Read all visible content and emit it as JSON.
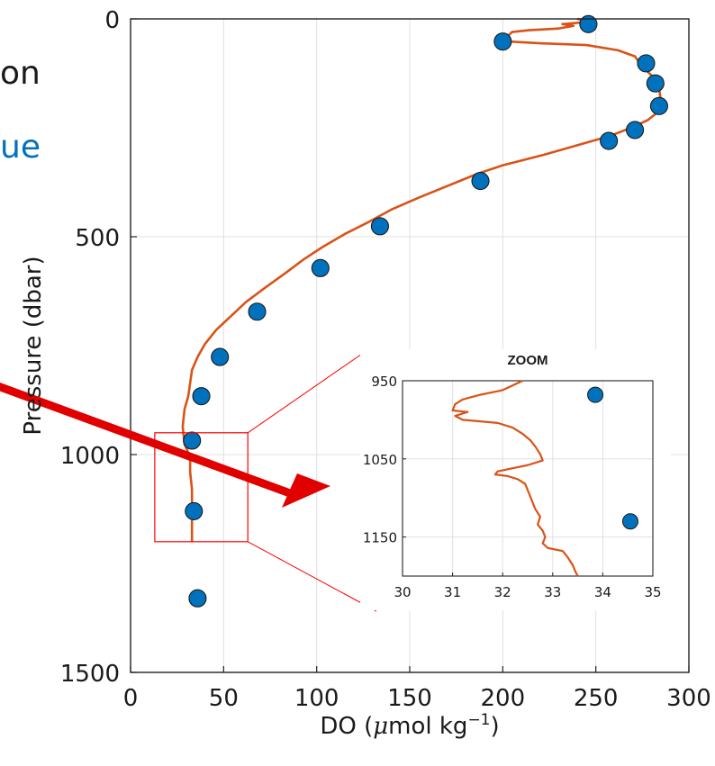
{
  "cropped_text": {
    "line1": "on",
    "line2": "ue",
    "line2_color": "#0072bd"
  },
  "colors": {
    "profile_line": "#d95319",
    "marker_fill": "#0072bd",
    "marker_edge": "#1a1a1a",
    "zoom_box": "#ff0000",
    "arrow": "#e00000",
    "grid": "#e0e0e0"
  },
  "chart_data": [
    {
      "type": "scatter",
      "title": "",
      "xlabel": "DO",
      "xlabel_unit_prefix": "(",
      "xlabel_unit_mu": "μ",
      "xlabel_unit_mid": "mol kg",
      "xlabel_unit_exp": "−1",
      "xlabel_unit_suffix": ")",
      "ylabel": "Pressure (dbar)",
      "xlim": [
        0,
        300
      ],
      "ylim": [
        0,
        1500
      ],
      "y_reversed": true,
      "grid": true,
      "xticks": [
        0,
        50,
        100,
        150,
        200,
        250,
        300
      ],
      "xtick_labels": [
        "0",
        "50",
        "100",
        "150",
        "200",
        "250",
        "300"
      ],
      "yticks": [
        0,
        500,
        1000,
        1500
      ],
      "ytick_labels": [
        "0",
        "500",
        "1000",
        "1500"
      ],
      "series": [
        {
          "kind": "bottle_samples",
          "points": [
            [
              246,
              12
            ],
            [
              200,
              52
            ],
            [
              277,
              102
            ],
            [
              282,
              148
            ],
            [
              284,
              200
            ],
            [
              271,
              255
            ],
            [
              257,
              280
            ],
            [
              188,
              372
            ],
            [
              134,
              476
            ],
            [
              102,
              572
            ],
            [
              68,
              672
            ],
            [
              48,
              776
            ],
            [
              38,
              866
            ],
            [
              33,
              968
            ],
            [
              34,
              1130
            ],
            [
              36,
              1330
            ]
          ]
        },
        {
          "kind": "sensor_profile",
          "points": [
            [
              240,
              0
            ],
            [
              248,
              6
            ],
            [
              232,
              12
            ],
            [
              238,
              16
            ],
            [
              230,
              22
            ],
            [
              214,
              26
            ],
            [
              205,
              30
            ],
            [
              203,
              38
            ],
            [
              199,
              44
            ],
            [
              204,
              52
            ],
            [
              220,
              56
            ],
            [
              245,
              60
            ],
            [
              262,
              72
            ],
            [
              271,
              86
            ],
            [
              275,
              110
            ],
            [
              280,
              130
            ],
            [
              284,
              160
            ],
            [
              285,
              190
            ],
            [
              283,
              215
            ],
            [
              278,
              232
            ],
            [
              270,
              248
            ],
            [
              258,
              268
            ],
            [
              240,
              290
            ],
            [
              222,
              312
            ],
            [
              200,
              336
            ],
            [
              186,
              356
            ],
            [
              170,
              384
            ],
            [
              155,
              410
            ],
            [
              140,
              438
            ],
            [
              128,
              466
            ],
            [
              115,
              494
            ],
            [
              103,
              524
            ],
            [
              93,
              552
            ],
            [
              83,
              584
            ],
            [
              72,
              618
            ],
            [
              62,
              650
            ],
            [
              54,
              682
            ],
            [
              46,
              714
            ],
            [
              40,
              746
            ],
            [
              36,
              776
            ],
            [
              33,
              806
            ],
            [
              32,
              836
            ],
            [
              31,
              866
            ],
            [
              29,
              896
            ],
            [
              28,
              936
            ],
            [
              29,
              976
            ],
            [
              32,
              1006
            ],
            [
              32,
              1040
            ],
            [
              33,
              1080
            ],
            [
              33,
              1120
            ],
            [
              33,
              1160
            ],
            [
              33,
              1200
            ]
          ]
        }
      ]
    },
    {
      "type": "scatter",
      "title": "ZOOM",
      "xlim": [
        30,
        35
      ],
      "ylim": [
        950,
        1200
      ],
      "y_reversed": true,
      "grid": true,
      "xticks": [
        30,
        31,
        32,
        33,
        34,
        35
      ],
      "xtick_labels": [
        "30",
        "31",
        "32",
        "33",
        "34",
        "35"
      ],
      "yticks": [
        950,
        1050,
        1150
      ],
      "ytick_labels": [
        "950",
        "1050",
        "1150"
      ],
      "series": [
        {
          "kind": "bottle_samples",
          "points": [
            [
              33.85,
              968
            ],
            [
              34.55,
              1130
            ]
          ]
        },
        {
          "kind": "sensor_profile",
          "points": [
            [
              32.4,
              950
            ],
            [
              32.0,
              962
            ],
            [
              31.55,
              968
            ],
            [
              31.2,
              974
            ],
            [
              31.05,
              980
            ],
            [
              31.0,
              988
            ],
            [
              31.3,
              990
            ],
            [
              31.05,
              995
            ],
            [
              31.2,
              1000
            ],
            [
              31.9,
              1004
            ],
            [
              32.2,
              1010
            ],
            [
              32.4,
              1018
            ],
            [
              32.55,
              1026
            ],
            [
              32.65,
              1034
            ],
            [
              32.75,
              1044
            ],
            [
              32.8,
              1052
            ],
            [
              32.5,
              1058
            ],
            [
              32.2,
              1062
            ],
            [
              31.9,
              1066
            ],
            [
              31.85,
              1070
            ],
            [
              32.1,
              1072
            ],
            [
              32.3,
              1076
            ],
            [
              32.45,
              1082
            ],
            [
              32.5,
              1090
            ],
            [
              32.55,
              1098
            ],
            [
              32.6,
              1106
            ],
            [
              32.65,
              1114
            ],
            [
              32.75,
              1124
            ],
            [
              32.7,
              1134
            ],
            [
              32.8,
              1142
            ],
            [
              32.85,
              1150
            ],
            [
              32.8,
              1158
            ],
            [
              32.9,
              1164
            ],
            [
              33.2,
              1168
            ],
            [
              33.3,
              1176
            ],
            [
              33.4,
              1186
            ],
            [
              33.45,
              1194
            ],
            [
              33.5,
              1200
            ]
          ]
        }
      ]
    }
  ],
  "zoom_region": {
    "x": [
      13,
      63
    ],
    "y": [
      950,
      1200
    ]
  }
}
